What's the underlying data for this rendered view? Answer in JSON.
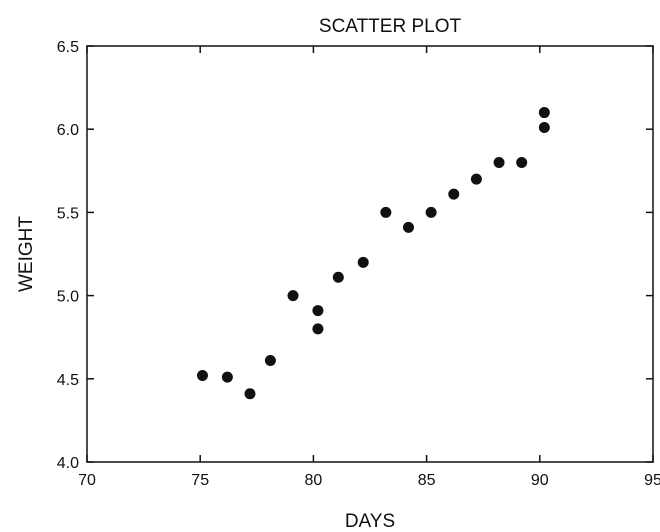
{
  "chart_data": {
    "type": "scatter",
    "title": "SCATTER PLOT",
    "xlabel": "DAYS",
    "ylabel": "WEIGHT",
    "xlim": [
      70,
      95
    ],
    "ylim": [
      4.0,
      6.5
    ],
    "x_ticks": [
      "70",
      "75",
      "80",
      "85",
      "90",
      "95"
    ],
    "y_ticks": [
      "4.0",
      "4.5",
      "5.0",
      "5.5",
      "6.0",
      "6.5"
    ],
    "grid": false,
    "marker_color": "#111111",
    "points": [
      {
        "x": 75.1,
        "y": 4.52
      },
      {
        "x": 76.2,
        "y": 4.51
      },
      {
        "x": 77.2,
        "y": 4.41
      },
      {
        "x": 78.1,
        "y": 4.61
      },
      {
        "x": 79.1,
        "y": 5.0
      },
      {
        "x": 80.2,
        "y": 4.91
      },
      {
        "x": 80.2,
        "y": 4.8
      },
      {
        "x": 81.1,
        "y": 5.11
      },
      {
        "x": 82.2,
        "y": 5.2
      },
      {
        "x": 83.2,
        "y": 5.5
      },
      {
        "x": 84.2,
        "y": 5.41
      },
      {
        "x": 85.2,
        "y": 5.5
      },
      {
        "x": 86.2,
        "y": 5.61
      },
      {
        "x": 87.2,
        "y": 5.7
      },
      {
        "x": 88.2,
        "y": 5.8
      },
      {
        "x": 89.2,
        "y": 5.8
      },
      {
        "x": 90.2,
        "y": 6.1
      },
      {
        "x": 90.2,
        "y": 6.01
      }
    ]
  }
}
